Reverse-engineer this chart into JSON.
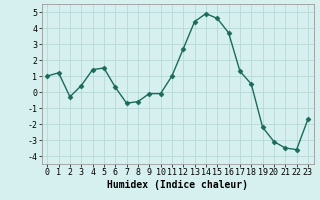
{
  "x": [
    0,
    1,
    2,
    3,
    4,
    5,
    6,
    7,
    8,
    9,
    10,
    11,
    12,
    13,
    14,
    15,
    16,
    17,
    18,
    19,
    20,
    21,
    22,
    23
  ],
  "y": [
    1.0,
    1.2,
    -0.3,
    0.4,
    1.4,
    1.5,
    0.3,
    -0.7,
    -0.6,
    -0.1,
    -0.1,
    1.0,
    2.7,
    4.4,
    4.9,
    4.6,
    3.7,
    1.3,
    0.5,
    -2.2,
    -3.1,
    -3.5,
    -3.6,
    -1.7
  ],
  "xlim": [
    -0.5,
    23.5
  ],
  "ylim": [
    -4.5,
    5.5
  ],
  "yticks": [
    -4,
    -3,
    -2,
    -1,
    0,
    1,
    2,
    3,
    4,
    5
  ],
  "xticks": [
    0,
    1,
    2,
    3,
    4,
    5,
    6,
    7,
    8,
    9,
    10,
    11,
    12,
    13,
    14,
    15,
    16,
    17,
    18,
    19,
    20,
    21,
    22,
    23
  ],
  "xlabel": "Humidex (Indice chaleur)",
  "line_color": "#1a6b5a",
  "marker": "D",
  "marker_size": 2.5,
  "background_color": "#d6f0f0",
  "grid_color": "#b8d8d8",
  "grid_major_color": "#c8a0a0",
  "xlabel_fontsize": 7,
  "tick_fontsize": 6
}
